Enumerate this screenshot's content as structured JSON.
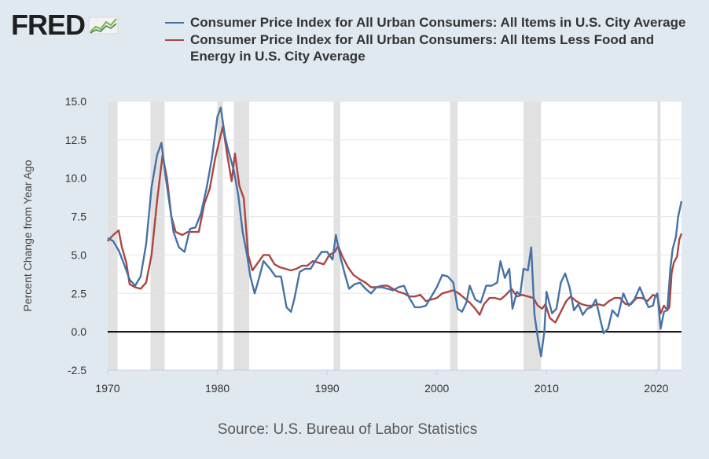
{
  "header": {
    "logo_text": "FRED",
    "logo_icon": "line-chart-icon"
  },
  "legend": [
    {
      "label": "Consumer Price Index for All Urban Consumers: All Items in U.S. City Average",
      "color": "#4572a7"
    },
    {
      "label": "Consumer Price Index for All Urban Consumers: All Items Less Food and Energy in U.S. City Average",
      "color": "#aa4643"
    }
  ],
  "source": "Source: U.S. Bureau of Labor Statistics",
  "chart_data": {
    "type": "line",
    "title": "",
    "xlabel": "",
    "ylabel": "Percent Change from Year Ago",
    "xlim": [
      1970,
      2022.3
    ],
    "ylim": [
      -2.5,
      15.0
    ],
    "xticks": [
      1970,
      1980,
      1990,
      2000,
      2010,
      2020
    ],
    "yticks": [
      -2.5,
      0.0,
      2.5,
      5.0,
      7.5,
      10.0,
      12.5,
      15.0
    ],
    "ytick_labels": [
      "-2.5",
      "0.0",
      "2.5",
      "5.0",
      "7.5",
      "10.0",
      "12.5",
      "15.0"
    ],
    "recessions": [
      [
        1970.0,
        1970.9
      ],
      [
        1973.9,
        1975.2
      ],
      [
        1980.0,
        1980.5
      ],
      [
        1981.5,
        1982.9
      ],
      [
        1990.6,
        1991.2
      ],
      [
        2001.2,
        2001.9
      ],
      [
        2007.9,
        2009.5
      ],
      [
        2020.1,
        2020.4
      ]
    ],
    "baseline": 0,
    "series": [
      {
        "name": "Consumer Price Index for All Urban Consumers: All Items in U.S. City Average",
        "color": "#4572a7",
        "points": [
          [
            1970.0,
            6.1
          ],
          [
            1970.5,
            5.9
          ],
          [
            1971.0,
            5.3
          ],
          [
            1971.5,
            4.4
          ],
          [
            1972.0,
            3.4
          ],
          [
            1972.5,
            3.0
          ],
          [
            1973.0,
            3.6
          ],
          [
            1973.5,
            5.7
          ],
          [
            1974.0,
            9.4
          ],
          [
            1974.5,
            11.5
          ],
          [
            1974.9,
            12.3
          ],
          [
            1975.3,
            10.0
          ],
          [
            1975.7,
            8.0
          ],
          [
            1976.0,
            6.5
          ],
          [
            1976.5,
            5.5
          ],
          [
            1977.0,
            5.2
          ],
          [
            1977.5,
            6.7
          ],
          [
            1978.0,
            6.8
          ],
          [
            1978.5,
            7.7
          ],
          [
            1979.0,
            9.3
          ],
          [
            1979.5,
            11.3
          ],
          [
            1980.0,
            14.0
          ],
          [
            1980.3,
            14.6
          ],
          [
            1980.7,
            12.7
          ],
          [
            1981.0,
            11.8
          ],
          [
            1981.5,
            10.5
          ],
          [
            1981.9,
            8.9
          ],
          [
            1982.3,
            6.5
          ],
          [
            1982.7,
            5.0
          ],
          [
            1983.0,
            3.6
          ],
          [
            1983.4,
            2.5
          ],
          [
            1983.8,
            3.5
          ],
          [
            1984.2,
            4.6
          ],
          [
            1984.8,
            4.1
          ],
          [
            1985.3,
            3.6
          ],
          [
            1985.8,
            3.6
          ],
          [
            1986.3,
            1.6
          ],
          [
            1986.7,
            1.3
          ],
          [
            1987.0,
            2.1
          ],
          [
            1987.5,
            3.9
          ],
          [
            1988.0,
            4.1
          ],
          [
            1988.5,
            4.1
          ],
          [
            1989.0,
            4.7
          ],
          [
            1989.5,
            5.2
          ],
          [
            1990.0,
            5.2
          ],
          [
            1990.5,
            4.7
          ],
          [
            1990.8,
            6.3
          ],
          [
            1991.2,
            4.9
          ],
          [
            1991.6,
            3.8
          ],
          [
            1992.0,
            2.8
          ],
          [
            1992.5,
            3.1
          ],
          [
            1993.0,
            3.2
          ],
          [
            1993.5,
            2.8
          ],
          [
            1994.0,
            2.5
          ],
          [
            1994.5,
            2.9
          ],
          [
            1995.0,
            2.9
          ],
          [
            1995.5,
            2.8
          ],
          [
            1996.0,
            2.7
          ],
          [
            1996.5,
            2.9
          ],
          [
            1997.0,
            3.0
          ],
          [
            1997.5,
            2.2
          ],
          [
            1998.0,
            1.6
          ],
          [
            1998.5,
            1.6
          ],
          [
            1999.0,
            1.7
          ],
          [
            1999.5,
            2.3
          ],
          [
            2000.0,
            2.9
          ],
          [
            2000.5,
            3.7
          ],
          [
            2001.0,
            3.6
          ],
          [
            2001.5,
            3.2
          ],
          [
            2001.9,
            1.5
          ],
          [
            2002.3,
            1.3
          ],
          [
            2002.7,
            1.9
          ],
          [
            2003.0,
            3.0
          ],
          [
            2003.5,
            2.1
          ],
          [
            2004.0,
            1.9
          ],
          [
            2004.5,
            3.0
          ],
          [
            2005.0,
            3.0
          ],
          [
            2005.5,
            3.2
          ],
          [
            2005.8,
            4.6
          ],
          [
            2006.2,
            3.5
          ],
          [
            2006.6,
            4.1
          ],
          [
            2006.9,
            1.5
          ],
          [
            2007.3,
            2.6
          ],
          [
            2007.6,
            2.4
          ],
          [
            2007.9,
            4.1
          ],
          [
            2008.3,
            4.0
          ],
          [
            2008.6,
            5.5
          ],
          [
            2008.9,
            1.1
          ],
          [
            2009.2,
            -0.4
          ],
          [
            2009.5,
            -1.6
          ],
          [
            2009.8,
            0.0
          ],
          [
            2010.0,
            2.6
          ],
          [
            2010.5,
            1.2
          ],
          [
            2010.9,
            1.5
          ],
          [
            2011.3,
            3.2
          ],
          [
            2011.7,
            3.8
          ],
          [
            2012.1,
            2.9
          ],
          [
            2012.5,
            1.4
          ],
          [
            2012.9,
            1.8
          ],
          [
            2013.3,
            1.1
          ],
          [
            2013.7,
            1.5
          ],
          [
            2014.1,
            1.6
          ],
          [
            2014.5,
            2.1
          ],
          [
            2014.9,
            0.8
          ],
          [
            2015.2,
            -0.1
          ],
          [
            2015.6,
            0.2
          ],
          [
            2016.0,
            1.4
          ],
          [
            2016.5,
            1.0
          ],
          [
            2017.0,
            2.5
          ],
          [
            2017.5,
            1.7
          ],
          [
            2018.0,
            2.1
          ],
          [
            2018.5,
            2.9
          ],
          [
            2018.9,
            2.2
          ],
          [
            2019.3,
            1.6
          ],
          [
            2019.7,
            1.7
          ],
          [
            2019.9,
            2.3
          ],
          [
            2020.1,
            2.5
          ],
          [
            2020.4,
            0.2
          ],
          [
            2020.7,
            1.3
          ],
          [
            2021.0,
            1.4
          ],
          [
            2021.3,
            4.2
          ],
          [
            2021.5,
            5.4
          ],
          [
            2021.8,
            6.2
          ],
          [
            2022.0,
            7.5
          ],
          [
            2022.3,
            8.5
          ]
        ]
      },
      {
        "name": "Consumer Price Index for All Urban Consumers: All Items Less Food and Energy in U.S. City Average",
        "color": "#aa4643",
        "points": [
          [
            1970.0,
            5.9
          ],
          [
            1970.5,
            6.3
          ],
          [
            1971.0,
            6.6
          ],
          [
            1971.3,
            5.5
          ],
          [
            1971.7,
            4.5
          ],
          [
            1972.0,
            3.1
          ],
          [
            1972.5,
            2.9
          ],
          [
            1973.0,
            2.8
          ],
          [
            1973.5,
            3.2
          ],
          [
            1974.0,
            5.0
          ],
          [
            1974.5,
            8.5
          ],
          [
            1975.0,
            11.5
          ],
          [
            1975.4,
            10.0
          ],
          [
            1975.8,
            7.5
          ],
          [
            1976.2,
            6.5
          ],
          [
            1976.8,
            6.3
          ],
          [
            1977.3,
            6.5
          ],
          [
            1977.8,
            6.5
          ],
          [
            1978.3,
            6.5
          ],
          [
            1978.8,
            8.3
          ],
          [
            1979.3,
            9.3
          ],
          [
            1979.8,
            11.3
          ],
          [
            1980.2,
            12.5
          ],
          [
            1980.5,
            13.4
          ],
          [
            1980.9,
            11.5
          ],
          [
            1981.3,
            9.8
          ],
          [
            1981.6,
            11.6
          ],
          [
            1982.0,
            9.5
          ],
          [
            1982.4,
            8.7
          ],
          [
            1982.8,
            5.0
          ],
          [
            1983.2,
            4.0
          ],
          [
            1983.7,
            4.5
          ],
          [
            1984.2,
            5.0
          ],
          [
            1984.7,
            5.0
          ],
          [
            1985.2,
            4.4
          ],
          [
            1985.7,
            4.2
          ],
          [
            1986.2,
            4.1
          ],
          [
            1986.7,
            4.0
          ],
          [
            1987.2,
            4.1
          ],
          [
            1987.7,
            4.3
          ],
          [
            1988.2,
            4.3
          ],
          [
            1988.7,
            4.6
          ],
          [
            1989.2,
            4.5
          ],
          [
            1989.7,
            4.4
          ],
          [
            1990.2,
            5.0
          ],
          [
            1990.7,
            5.2
          ],
          [
            1991.0,
            5.6
          ],
          [
            1991.4,
            4.9
          ],
          [
            1991.9,
            4.2
          ],
          [
            1992.4,
            3.7
          ],
          [
            1993.0,
            3.4
          ],
          [
            1993.5,
            3.2
          ],
          [
            1994.0,
            2.9
          ],
          [
            1994.5,
            2.9
          ],
          [
            1995.0,
            3.0
          ],
          [
            1995.5,
            3.0
          ],
          [
            1996.0,
            2.8
          ],
          [
            1996.5,
            2.6
          ],
          [
            1997.0,
            2.5
          ],
          [
            1997.5,
            2.3
          ],
          [
            1998.0,
            2.3
          ],
          [
            1998.5,
            2.4
          ],
          [
            1999.0,
            2.0
          ],
          [
            1999.5,
            2.1
          ],
          [
            2000.0,
            2.2
          ],
          [
            2000.5,
            2.5
          ],
          [
            2001.0,
            2.6
          ],
          [
            2001.5,
            2.7
          ],
          [
            2002.0,
            2.5
          ],
          [
            2002.5,
            2.2
          ],
          [
            2003.0,
            1.9
          ],
          [
            2003.5,
            1.5
          ],
          [
            2003.9,
            1.1
          ],
          [
            2004.3,
            1.8
          ],
          [
            2004.8,
            2.2
          ],
          [
            2005.3,
            2.2
          ],
          [
            2005.8,
            2.1
          ],
          [
            2006.3,
            2.4
          ],
          [
            2006.8,
            2.8
          ],
          [
            2007.3,
            2.3
          ],
          [
            2007.8,
            2.4
          ],
          [
            2008.3,
            2.3
          ],
          [
            2008.8,
            2.2
          ],
          [
            2009.2,
            1.7
          ],
          [
            2009.6,
            1.5
          ],
          [
            2009.9,
            1.8
          ],
          [
            2010.3,
            0.9
          ],
          [
            2010.8,
            0.6
          ],
          [
            2011.3,
            1.3
          ],
          [
            2011.8,
            2.0
          ],
          [
            2012.2,
            2.3
          ],
          [
            2012.7,
            2.0
          ],
          [
            2013.2,
            1.8
          ],
          [
            2013.7,
            1.7
          ],
          [
            2014.2,
            1.7
          ],
          [
            2014.7,
            1.8
          ],
          [
            2015.2,
            1.7
          ],
          [
            2015.7,
            2.0
          ],
          [
            2016.2,
            2.2
          ],
          [
            2016.7,
            2.2
          ],
          [
            2017.2,
            1.8
          ],
          [
            2017.7,
            1.8
          ],
          [
            2018.2,
            2.2
          ],
          [
            2018.7,
            2.2
          ],
          [
            2019.2,
            2.0
          ],
          [
            2019.7,
            2.4
          ],
          [
            2020.1,
            2.3
          ],
          [
            2020.4,
            1.2
          ],
          [
            2020.7,
            1.7
          ],
          [
            2021.0,
            1.4
          ],
          [
            2021.2,
            1.6
          ],
          [
            2021.4,
            3.8
          ],
          [
            2021.6,
            4.5
          ],
          [
            2021.9,
            4.9
          ],
          [
            2022.1,
            6.0
          ],
          [
            2022.3,
            6.4
          ]
        ]
      }
    ]
  }
}
